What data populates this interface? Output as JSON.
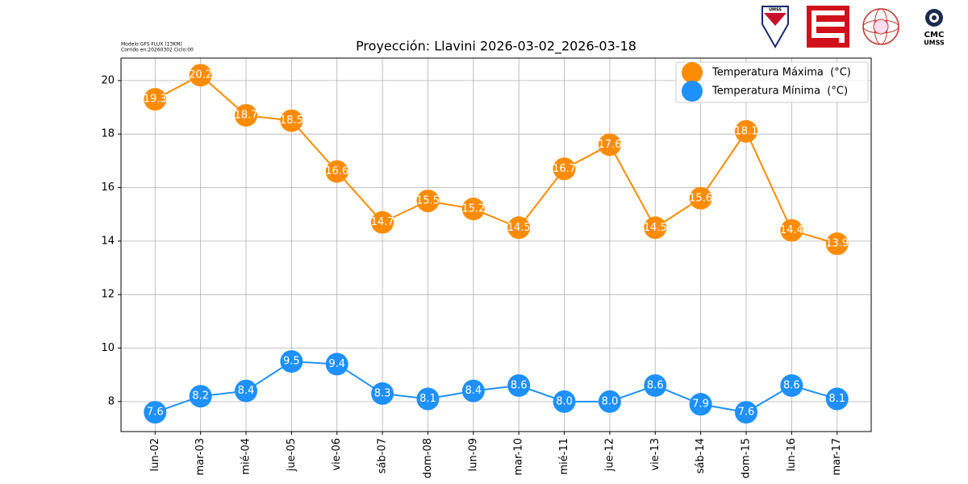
{
  "chart_data": {
    "type": "line",
    "title": "Proyección: Llavini 2026-03-02_2026-03-18",
    "notes": [
      "Modelo:GFS FLUX (13KM)",
      "Corrido en:20260302 Ciclo:00"
    ],
    "logo_text": [
      "UMSS",
      "CMC",
      "UMSS"
    ],
    "categories": [
      "lun-02",
      "mar-03",
      "mié-04",
      "jue-05",
      "vie-06",
      "sáb-07",
      "dom-08",
      "lun-09",
      "mar-10",
      "mié-11",
      "jue-12",
      "vie-13",
      "sáb-14",
      "dom-15",
      "lun-16",
      "mar-17"
    ],
    "series": [
      {
        "name": "Temperatura Máxima  (°C)",
        "color": "#ff8c00",
        "values": [
          19.3,
          20.2,
          18.7,
          18.5,
          16.6,
          14.7,
          15.5,
          15.2,
          14.5,
          16.7,
          17.6,
          14.5,
          15.6,
          18.1,
          14.4,
          13.9
        ]
      },
      {
        "name": "Temperatura Mínima  (°C)",
        "color": "#1e90ff",
        "values": [
          7.6,
          8.2,
          8.4,
          9.5,
          9.4,
          8.3,
          8.1,
          8.4,
          8.6,
          8.0,
          8.0,
          8.6,
          7.9,
          7.6,
          8.6,
          8.1
        ],
        "value_labels": [
          "7.6",
          "8.2",
          "8.4",
          "9.5",
          "9.4",
          "8.3",
          "8.1",
          "8.4",
          "8.6",
          "8.0",
          "8.0",
          "8.6",
          "7.9",
          "7.6",
          "8.6",
          "8.1"
        ]
      }
    ],
    "ylim": [
      6.88,
      20.84
    ],
    "yticks": [
      8,
      10,
      12,
      14,
      16,
      18,
      20
    ],
    "grid": true,
    "legend": "upper right"
  }
}
